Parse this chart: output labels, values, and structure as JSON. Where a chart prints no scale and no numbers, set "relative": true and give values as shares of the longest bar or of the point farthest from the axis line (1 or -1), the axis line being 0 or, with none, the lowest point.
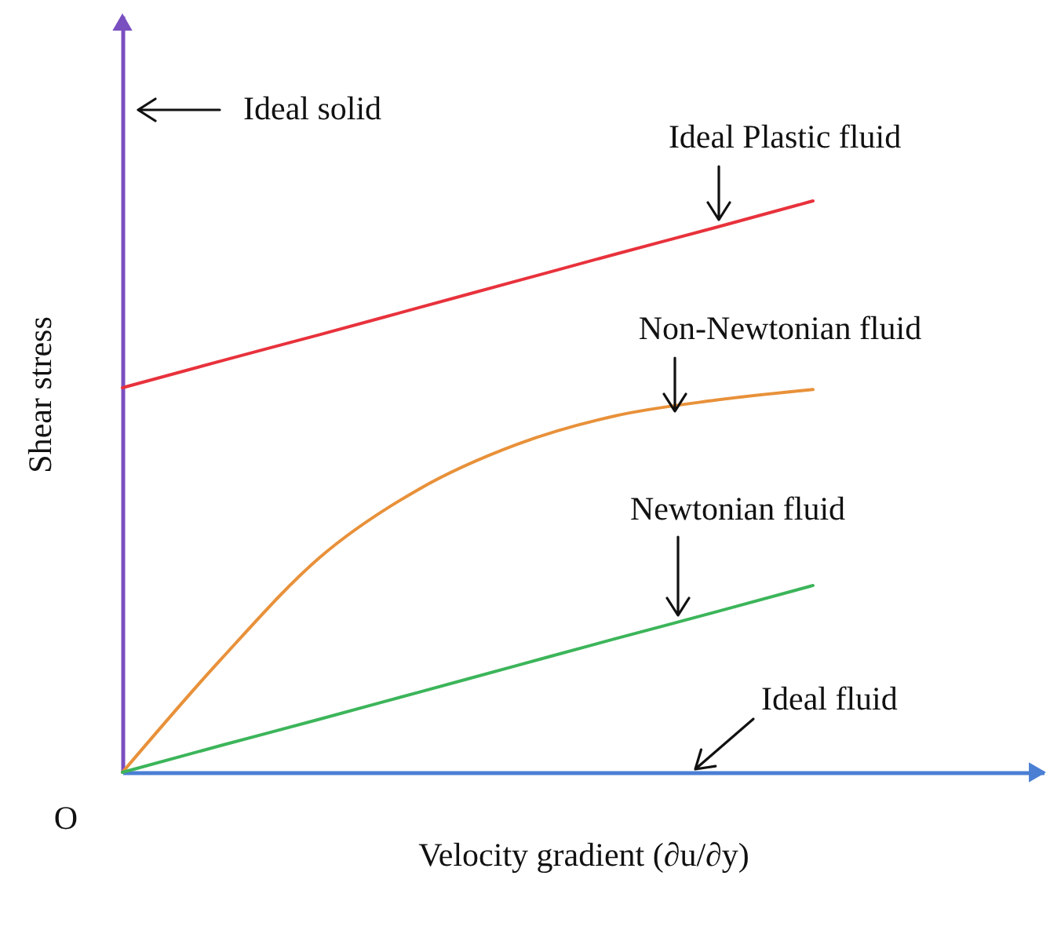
{
  "chart_data": {
    "type": "line",
    "relative": true,
    "tick_labels": false,
    "xlabel": "Velocity gradient (∂u/∂y)",
    "ylabel": "Shear stress",
    "categories": [
      null,
      null,
      null,
      null,
      null,
      null,
      null,
      null
    ],
    "series": [
      {
        "name": "Ideal Plastic fluid",
        "color": "#e8323c",
        "values": [
          0.673,
          0.72,
          0.766,
          0.813,
          0.86,
          0.907,
          0.953,
          1
        ]
      },
      {
        "name": "Non-Newtonian fluid",
        "color": "#e8913a",
        "values": [
          0,
          0.198,
          0.376,
          0.495,
          0.574,
          0.624,
          0.651,
          0.67
        ]
      },
      {
        "name": "Newtonian fluid",
        "color": "#3cb55a",
        "values": [
          0,
          0.047,
          0.093,
          0.14,
          0.187,
          0.234,
          0.28,
          0.327
        ]
      }
    ],
    "annotations": [
      "Ideal solid",
      "Ideal fluid",
      "O"
    ]
  }
}
